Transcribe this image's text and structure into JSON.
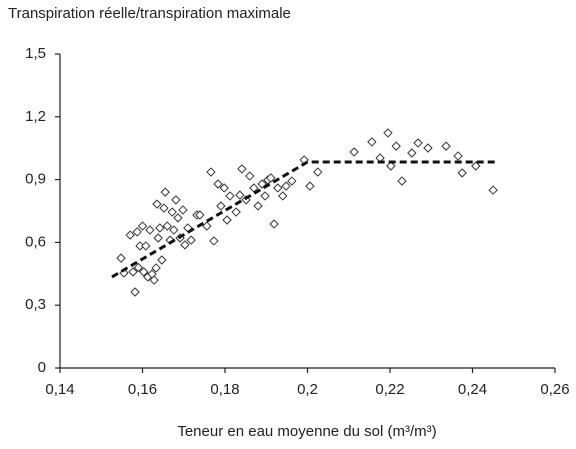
{
  "chart_data": {
    "type": "scatter",
    "title": "Transpiration réelle/transpiration maximale",
    "x_label": "Teneur en eau moyenne du sol (m³/m³)",
    "xlim": [
      0.14,
      0.26
    ],
    "xticks": [
      {
        "value": 0.14,
        "label": "0,14"
      },
      {
        "value": 0.16,
        "label": "0,16"
      },
      {
        "value": 0.18,
        "label": "0,18"
      },
      {
        "value": 0.2,
        "label": "0,2"
      },
      {
        "value": 0.22,
        "label": "0,22"
      },
      {
        "value": 0.24,
        "label": "0,24"
      },
      {
        "value": 0.26,
        "label": "0,26"
      }
    ],
    "ylim": [
      0,
      1.5
    ],
    "yticks": [
      0,
      {
        "value": 0.3,
        "label": "0,3"
      },
      {
        "value": 0.6,
        "label": "0,6"
      },
      {
        "value": 0.9,
        "label": "0,9"
      },
      {
        "value": 1.2,
        "label": "1,2"
      },
      {
        "value": 1.5,
        "label": "1,5"
      }
    ],
    "grid": false,
    "series": [
      {
        "marker": "diamond",
        "color": "#333333",
        "x": [
          0.1548,
          0.1555,
          0.157,
          0.1577,
          0.1582,
          0.1587,
          0.159,
          0.1594,
          0.16,
          0.1603,
          0.1608,
          0.1613,
          0.1618,
          0.1623,
          0.1628,
          0.1633,
          0.1635,
          0.1638,
          0.1642,
          0.1647,
          0.1652,
          0.1655,
          0.166,
          0.1667,
          0.1672,
          0.1676,
          0.1681,
          0.1686,
          0.1691,
          0.1698,
          0.1703,
          0.171,
          0.1718,
          0.1732,
          0.1739,
          0.1756,
          0.1766,
          0.1773,
          0.1783,
          0.179,
          0.1798,
          0.1805,
          0.1812,
          0.1827,
          0.1836,
          0.1841,
          0.1851,
          0.186,
          0.187,
          0.188,
          0.189,
          0.1897,
          0.1904,
          0.1911,
          0.1919,
          0.1928,
          0.194,
          0.1948,
          0.1962,
          0.1992,
          0.2006,
          0.2025,
          0.2113,
          0.2156,
          0.2176,
          0.2195,
          0.2202,
          0.2215,
          0.2229,
          0.2253,
          0.2268,
          0.2292,
          0.2336,
          0.2365,
          0.2375,
          0.2408,
          0.245
        ],
        "values": [
          0.525,
          0.454,
          0.635,
          0.459,
          0.363,
          0.65,
          0.48,
          0.583,
          0.678,
          0.459,
          0.583,
          0.435,
          0.659,
          0.449,
          0.42,
          0.478,
          0.783,
          0.621,
          0.669,
          0.516,
          0.764,
          0.84,
          0.678,
          0.611,
          0.745,
          0.659,
          0.803,
          0.717,
          0.621,
          0.755,
          0.588,
          0.669,
          0.611,
          0.731,
          0.731,
          0.678,
          0.936,
          0.607,
          0.879,
          0.774,
          0.86,
          0.707,
          0.822,
          0.745,
          0.826,
          0.951,
          0.803,
          0.917,
          0.86,
          0.774,
          0.879,
          0.822,
          0.898,
          0.908,
          0.688,
          0.86,
          0.822,
          0.869,
          0.893,
          0.994,
          0.869,
          0.936,
          1.032,
          1.08,
          1.003,
          1.123,
          0.965,
          1.06,
          0.893,
          1.027,
          1.075,
          1.051,
          1.06,
          1.013,
          0.932,
          0.965,
          0.85
        ]
      },
      {
        "marker": "none",
        "style": "dashed",
        "color": "#111111",
        "x": [
          0.1526,
          0.2,
          0.2455
        ],
        "values": [
          0.435,
          0.984,
          0.984
        ]
      }
    ]
  }
}
